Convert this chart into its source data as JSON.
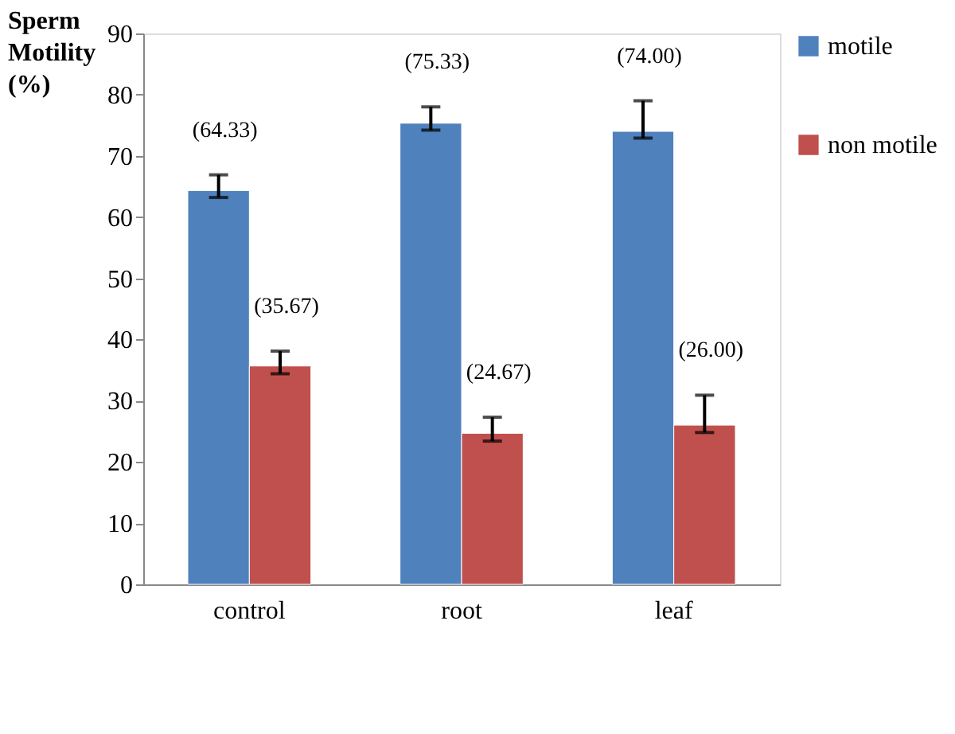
{
  "chart_data": {
    "type": "bar",
    "ylabel": "Sperm Motility (%)",
    "categories": [
      "control",
      "root",
      "leaf"
    ],
    "series": [
      {
        "name": "motile",
        "color": "#4f81bd",
        "values": [
          64.33,
          75.33,
          74.0
        ],
        "errors": [
          [
            63.2,
            66.9
          ],
          [
            74.2,
            78.0
          ],
          [
            72.9,
            79.0
          ]
        ],
        "value_labels": [
          "(64.33)",
          "(75.33)",
          "(74.00)"
        ]
      },
      {
        "name": "non motile",
        "color": "#c0504d",
        "values": [
          35.67,
          24.67,
          26.0
        ],
        "errors": [
          [
            34.4,
            38.1
          ],
          [
            23.4,
            27.3
          ],
          [
            24.8,
            30.9
          ]
        ],
        "value_labels": [
          "(35.67)",
          "(24.67)",
          "(26.00)"
        ]
      }
    ],
    "ylim": [
      0,
      90
    ],
    "yticks": [
      0,
      10,
      20,
      30,
      40,
      50,
      60,
      70,
      80,
      90
    ],
    "grid": false,
    "legend": "right"
  }
}
